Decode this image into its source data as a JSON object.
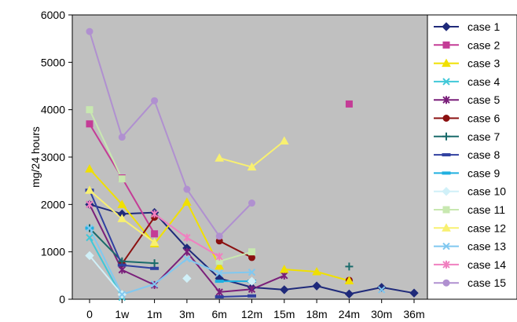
{
  "chart_data": {
    "type": "line",
    "title": "",
    "xlabel": "",
    "ylabel": "mg/24 hours",
    "categories": [
      "0",
      "1w",
      "1m",
      "3m",
      "6m",
      "12m",
      "15m",
      "18m",
      "24m",
      "30m",
      "36m"
    ],
    "ylim": [
      0,
      6000
    ],
    "yticks": [
      0,
      1000,
      2000,
      3000,
      4000,
      5000,
      6000
    ],
    "grid": false,
    "legend_position": "right",
    "plot_background": "#c0c0c0",
    "series": [
      {
        "name": "case 1",
        "color": "#1f2a7a",
        "marker": "diamond",
        "values": [
          2000,
          1800,
          1830,
          1080,
          440,
          250,
          200,
          280,
          110,
          250,
          130
        ]
      },
      {
        "name": "case 2",
        "color": "#c43c96",
        "marker": "square",
        "values": [
          3700,
          2560,
          1380,
          null,
          null,
          null,
          null,
          null,
          4120,
          null,
          null
        ]
      },
      {
        "name": "case 3",
        "color": "#f0e000",
        "marker": "triangle",
        "values": [
          2750,
          2000,
          1170,
          2050,
          700,
          null,
          null,
          null,
          null,
          null,
          null
        ]
      },
      {
        "name": "case 4",
        "color": "#40c8d8",
        "marker": "x",
        "values": [
          1300,
          40,
          null,
          null,
          null,
          null,
          null,
          null,
          null,
          null,
          null
        ]
      },
      {
        "name": "case 5",
        "color": "#7a1f7a",
        "marker": "star",
        "values": [
          2000,
          620,
          300,
          1000,
          150,
          210,
          500,
          null,
          null,
          null,
          null
        ]
      },
      {
        "name": "case 6",
        "color": "#8b1010",
        "marker": "circle",
        "values": [
          null,
          750,
          1730,
          null,
          1230,
          880,
          null,
          null,
          400,
          null,
          null
        ]
      },
      {
        "name": "case 7",
        "color": "#1a6b6b",
        "marker": "plus",
        "values": [
          1500,
          800,
          760,
          null,
          null,
          null,
          null,
          null,
          690,
          null,
          null
        ]
      },
      {
        "name": "case 8",
        "color": "#3040a0",
        "marker": "dash",
        "values": [
          2300,
          720,
          650,
          null,
          50,
          70,
          null,
          null,
          null,
          null,
          null
        ]
      },
      {
        "name": "case 9",
        "color": "#20b0e0",
        "marker": "dash",
        "values": [
          1500,
          null,
          null,
          null,
          380,
          380,
          null,
          null,
          null,
          null,
          null
        ]
      },
      {
        "name": "case 10",
        "color": "#d0f0f8",
        "marker": "diamond",
        "values": [
          920,
          100,
          null,
          440,
          null,
          380,
          null,
          null,
          null,
          null,
          null
        ]
      },
      {
        "name": "case 11",
        "color": "#c8e8b0",
        "marker": "square",
        "values": [
          4000,
          2540,
          null,
          null,
          800,
          1000,
          null,
          null,
          null,
          null,
          null
        ]
      },
      {
        "name": "case 12",
        "color": "#f8f070",
        "marker": "triangle",
        "values": [
          2300,
          1700,
          1200,
          null,
          2980,
          2790,
          3340,
          null,
          null,
          null,
          null
        ]
      },
      {
        "name": "case 13",
        "color": "#80c8f0",
        "marker": "x",
        "values": [
          1500,
          100,
          320,
          850,
          550,
          570,
          null,
          null,
          null,
          200,
          null
        ]
      },
      {
        "name": "case 14",
        "color": "#f080c0",
        "marker": "star",
        "values": [
          2000,
          null,
          1800,
          1300,
          900,
          null,
          null,
          null,
          null,
          null,
          null
        ]
      },
      {
        "name": "case 15",
        "color": "#b090d0",
        "marker": "circle",
        "values": [
          5650,
          3420,
          4190,
          2320,
          1330,
          2030,
          null,
          null,
          null,
          null,
          null
        ]
      }
    ],
    "extra_segments": [
      {
        "series": "case 3",
        "points": [
          [
            6,
            630
          ],
          [
            7,
            580
          ],
          [
            8,
            390
          ]
        ]
      }
    ]
  }
}
